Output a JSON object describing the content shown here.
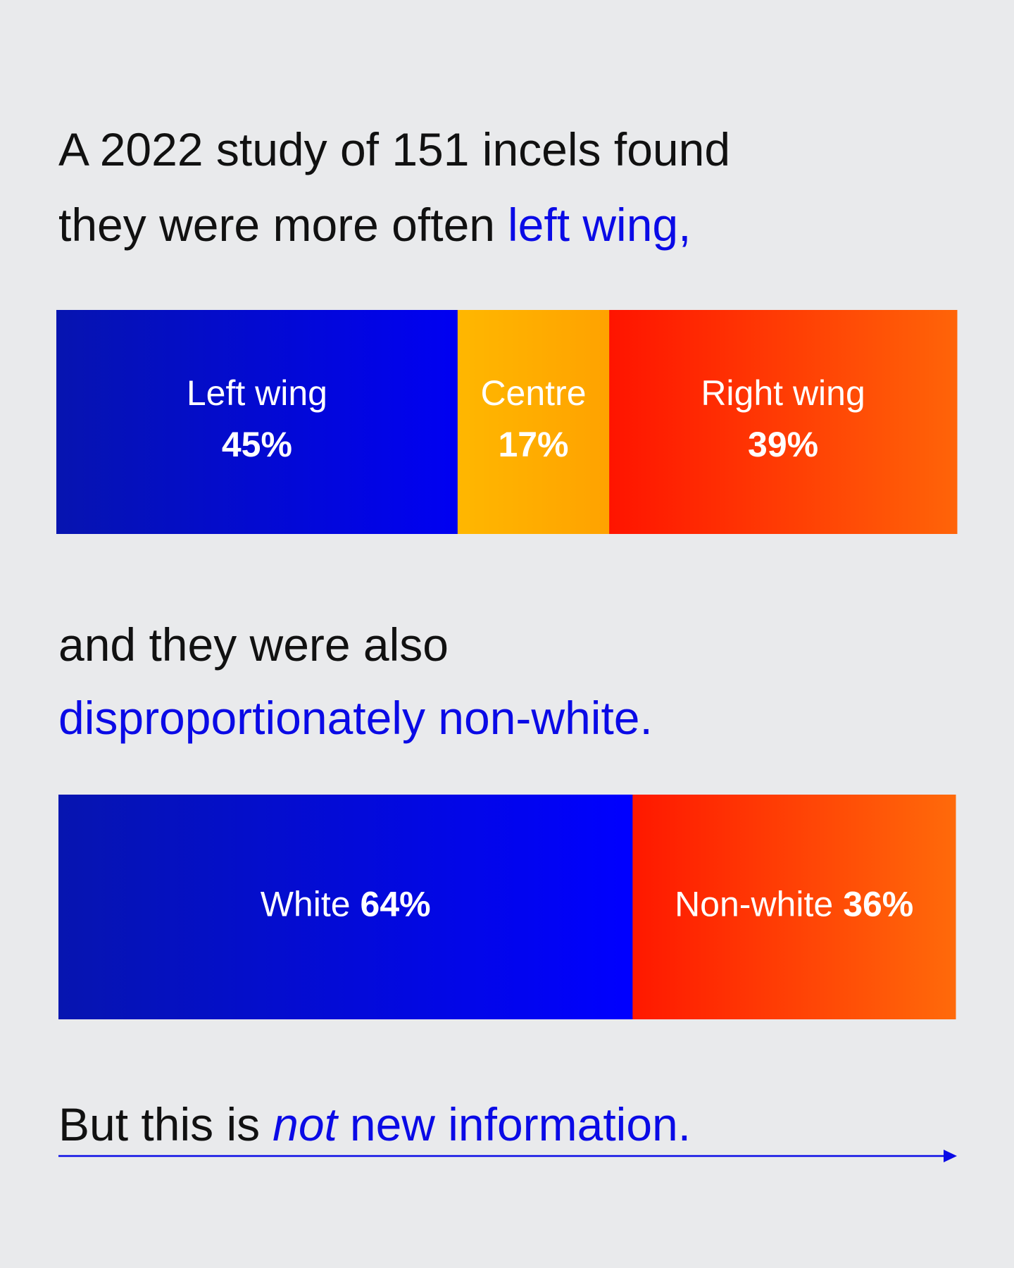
{
  "intro": {
    "line1": "A 2022 study of 151 incels found",
    "line2": "they were more often",
    "highlight": "left wing,"
  },
  "middle": {
    "line1": "and they were also",
    "highlight": "disproportionately non-white."
  },
  "footer": {
    "text": "But this is",
    "emphasis": "not",
    "highlight": "new information."
  },
  "chart_data": [
    {
      "type": "bar",
      "stacked": true,
      "orientation": "horizontal",
      "label_layout": "stacked",
      "categories": [
        "Left wing",
        "Centre",
        "Right wing"
      ],
      "values": [
        45,
        17,
        39
      ],
      "value_labels": [
        "45%",
        "17%",
        "39%"
      ],
      "gradients": [
        [
          "#0614b0",
          "#0000f2"
        ],
        [
          "#ffb700",
          "#ffa200"
        ],
        [
          "#ff1400",
          "#ff6408"
        ]
      ]
    },
    {
      "type": "bar",
      "stacked": true,
      "orientation": "horizontal",
      "label_layout": "inline",
      "categories": [
        "White",
        "Non-white"
      ],
      "values": [
        64,
        36
      ],
      "value_labels": [
        "64%",
        "36%"
      ],
      "gradients": [
        [
          "#0615b0",
          "#0000ff"
        ],
        [
          "#ff1800",
          "#ff6a0a"
        ]
      ]
    }
  ]
}
